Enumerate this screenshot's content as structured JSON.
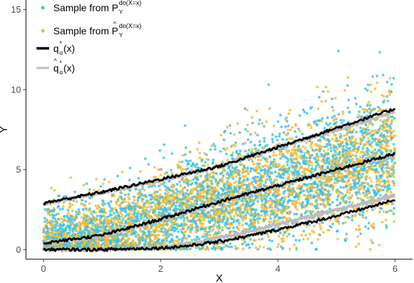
{
  "chart_data": {
    "type": "scatter",
    "xlabel": "X",
    "ylabel": "Y",
    "xlim": [
      -0.3,
      6.3
    ],
    "ylim": [
      -0.6,
      15.6
    ],
    "x_ticks": [
      0,
      2,
      4,
      6
    ],
    "x_tick_labels": [
      "0",
      "2",
      "4",
      "6"
    ],
    "y_ticks": [
      0,
      5,
      10,
      15
    ],
    "y_tick_labels": [
      "0",
      "5",
      "10",
      "15"
    ],
    "grid": false,
    "legend_position": "top-left",
    "legend": [
      {
        "kind": "point",
        "color": "#33C3EE",
        "text": "Sample from P",
        "sub": "Y",
        "sup": "do(X=x)",
        "hat": false
      },
      {
        "kind": "point",
        "color": "#F7B92E",
        "text": "Sample from P",
        "sub": "Y",
        "sup": "do(X=x)",
        "hat": true
      },
      {
        "kind": "line",
        "color": "#000000",
        "text": "q",
        "sub": "α",
        "sup": "*",
        "suffix": "(x)",
        "hat": false
      },
      {
        "kind": "line",
        "color": "#BDBDBD",
        "text": "q",
        "sub": "α",
        "sup": "*",
        "suffix": "(x)",
        "hat": true
      }
    ],
    "series": [
      {
        "name": "Sample from P_Y^do(X=x)",
        "kind": "scatter",
        "color": "#33C3EE",
        "n_points": 3000
      },
      {
        "name": "Sample from P̂_Y^do(X=x)",
        "kind": "scatter",
        "color": "#F7B92E",
        "n_points": 3000
      },
      {
        "name": "q*_α(x)",
        "kind": "lines",
        "color": "#000000",
        "curves": [
          {
            "x": [
              0,
              1,
              2,
              3,
              4,
              5,
              6
            ],
            "y": [
              2.9,
              3.6,
              4.4,
              5.2,
              6.4,
              7.6,
              8.8
            ]
          },
          {
            "x": [
              0,
              1,
              2,
              3,
              4,
              5,
              6
            ],
            "y": [
              0.4,
              0.9,
              1.9,
              3.0,
              4.0,
              5.0,
              6.0
            ]
          },
          {
            "x": [
              0,
              1,
              2,
              2.5,
              3,
              3.5,
              4,
              5,
              6
            ],
            "y": [
              0.0,
              0.0,
              0.1,
              0.25,
              0.5,
              0.85,
              1.25,
              2.1,
              3.1
            ]
          }
        ]
      },
      {
        "name": "q̂*_α(x)",
        "kind": "lines",
        "color": "#BDBDBD",
        "curves": [
          {
            "x": [
              0,
              1,
              2,
              3,
              4,
              5,
              6
            ],
            "y": [
              2.85,
              3.55,
              4.35,
              5.2,
              6.4,
              7.5,
              8.6
            ]
          },
          {
            "x": [
              0,
              1,
              2,
              3,
              4,
              5,
              6
            ],
            "y": [
              0.35,
              0.85,
              1.85,
              2.95,
              4.0,
              5.0,
              5.9
            ]
          },
          {
            "x": [
              0,
              1,
              2,
              2.5,
              3,
              3.5,
              4,
              5,
              6
            ],
            "y": [
              0.0,
              0.0,
              0.15,
              0.35,
              0.75,
              1.15,
              1.6,
              2.45,
              3.4
            ]
          }
        ]
      }
    ]
  }
}
